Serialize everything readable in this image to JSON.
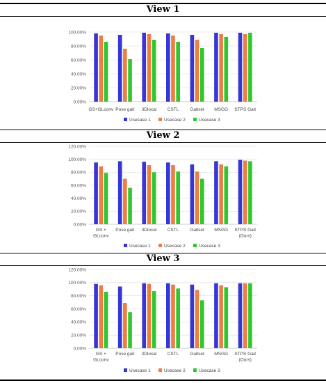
{
  "colors": {
    "usecase1": "#3535d8",
    "usecase2": "#ed7d45",
    "usecase3": "#2ec82e"
  },
  "panels": [
    {
      "title": "View 1"
    },
    {
      "title": "View 2"
    },
    {
      "title": "View 3"
    }
  ],
  "chart_data": [
    {
      "type": "bar",
      "title": "View 1",
      "categories": [
        [
          "GS+GLconv"
        ],
        [
          "Pose gait"
        ],
        [
          "3Dlocal"
        ],
        [
          "CSTL"
        ],
        [
          "Gaitset"
        ],
        [
          "MSGG"
        ],
        [
          "STPS Gait"
        ]
      ],
      "series": [
        {
          "name": "Usecase 1",
          "values": [
            98,
            96,
            99,
            98,
            96,
            99,
            99
          ]
        },
        {
          "name": "Usecase 2",
          "values": [
            95,
            76,
            97,
            95,
            89,
            97,
            97
          ]
        },
        {
          "name": "Usecase 3",
          "values": [
            86,
            61,
            89,
            86,
            77,
            93,
            99
          ]
        }
      ],
      "yticks": [
        "0.00%",
        "20.00%",
        "40.00%",
        "60.00%",
        "80.00%",
        "100.00%"
      ],
      "ylim": [
        0,
        100
      ],
      "legend": "bottom",
      "grid": true
    },
    {
      "type": "bar",
      "title": "View 2",
      "categories": [
        [
          "GS +",
          "GLconv"
        ],
        [
          "Pose gait"
        ],
        [
          "3Dlocal"
        ],
        [
          "CSTL"
        ],
        [
          "Gaitset"
        ],
        [
          "MSGG"
        ],
        [
          "STPS Gait",
          "(Ours)"
        ]
      ],
      "series": [
        {
          "name": "Usecase 1",
          "values": [
            95,
            97,
            96,
            95,
            92,
            97,
            99
          ]
        },
        {
          "name": "Usecase 2",
          "values": [
            89,
            70,
            91,
            91,
            81,
            92,
            98
          ]
        },
        {
          "name": "Usecase 3",
          "values": [
            79,
            56,
            80,
            81,
            70,
            89,
            97
          ]
        }
      ],
      "yticks": [
        "0.00%",
        "20.00%",
        "40.00%",
        "60.00%",
        "80.00%",
        "100.00%",
        "120.00%"
      ],
      "ylim": [
        0,
        120
      ],
      "legend": "bottom",
      "grid": true
    },
    {
      "type": "bar",
      "title": "View 3",
      "categories": [
        [
          "GS +",
          "GLconv"
        ],
        [
          "Pose gait"
        ],
        [
          "3Dlocal"
        ],
        [
          "CSTL"
        ],
        [
          "Gaitset"
        ],
        [
          "MSGG"
        ],
        [
          "STPS Gait",
          "(Ours)"
        ]
      ],
      "series": [
        {
          "name": "Usecase 1",
          "values": [
            98,
            94,
            99,
            99,
            97,
            99,
            99
          ]
        },
        {
          "name": "Usecase 2",
          "values": [
            96,
            69,
            98,
            97,
            89,
            96,
            99
          ]
        },
        {
          "name": "Usecase 3",
          "values": [
            86,
            55,
            87,
            91,
            73,
            93,
            99
          ]
        }
      ],
      "yticks": [
        "0.00%",
        "20.00%",
        "40.00%",
        "60.00%",
        "80.00%",
        "100.00%",
        "120.00%"
      ],
      "ylim": [
        0,
        120
      ],
      "legend": "bottom",
      "grid": true
    }
  ]
}
